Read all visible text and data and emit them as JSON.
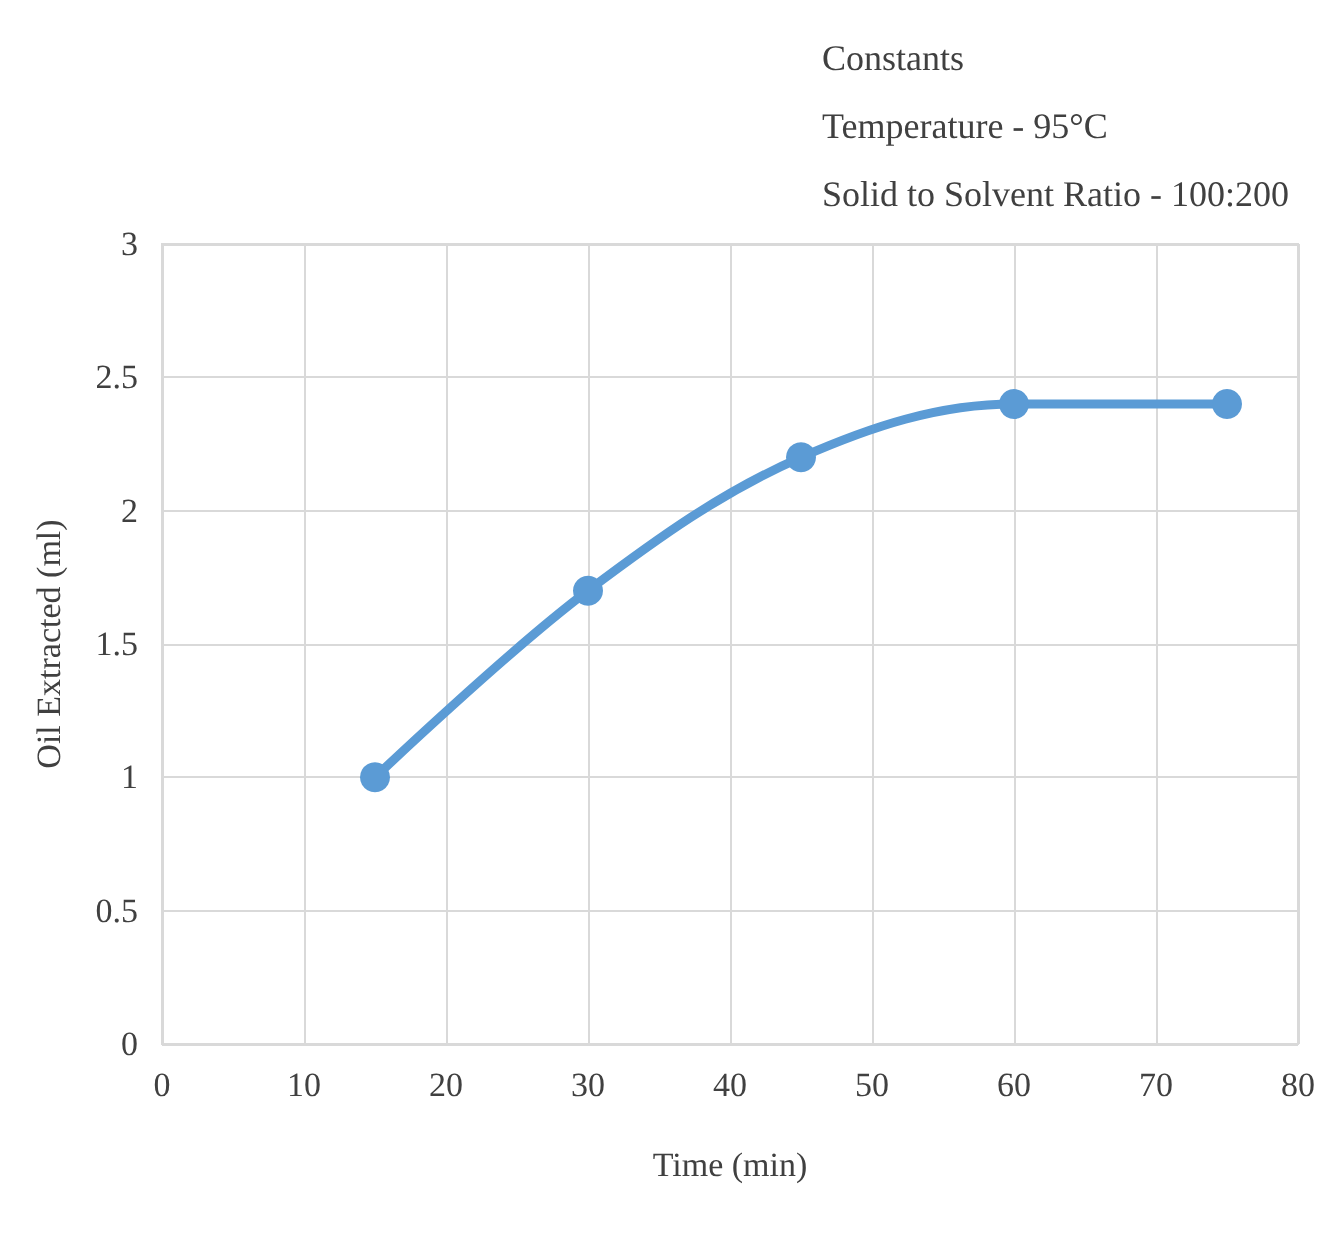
{
  "chart_data": {
    "type": "line",
    "xlabel": "Time (min)",
    "ylabel": "Oil Extracted (ml)",
    "annotations": [
      "Constants",
      "Temperature - 95°C",
      "Solid to Solvent Ratio - 100:200"
    ],
    "x": [
      15,
      30,
      45,
      60,
      75
    ],
    "series": [
      {
        "color": "#5b9bd5",
        "values": [
          1,
          1.7,
          2.2,
          2.4,
          2.4
        ]
      }
    ],
    "xlim": [
      0,
      80
    ],
    "xticks": [
      0,
      10,
      20,
      30,
      40,
      50,
      60,
      70,
      80
    ],
    "ylim": [
      0,
      3
    ],
    "yticks": [
      0,
      0.5,
      1,
      1.5,
      2,
      2.5,
      3
    ],
    "grid": true,
    "marker": "circle",
    "line_style": "solid"
  }
}
